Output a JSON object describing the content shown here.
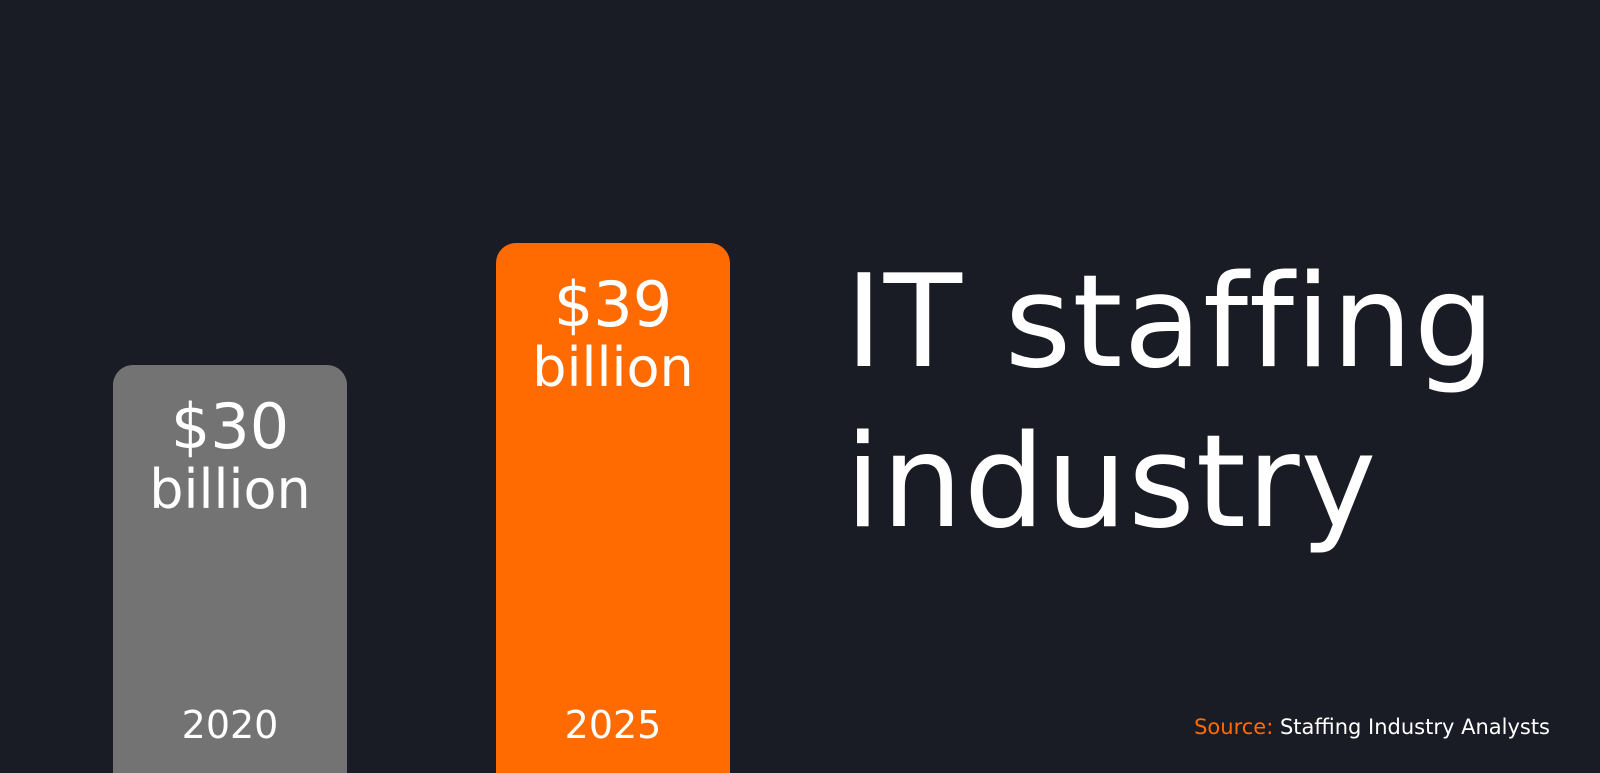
{
  "chart_data": {
    "type": "bar",
    "title": "IT staffing industry",
    "title_lines": [
      "IT staffing",
      "industry"
    ],
    "categories": [
      "2020",
      "2025"
    ],
    "values": [
      30,
      39
    ],
    "unit": "billion",
    "value_labels": [
      {
        "amount": "$30",
        "unit": "billion"
      },
      {
        "amount": "$39",
        "unit": "billion"
      }
    ],
    "colors": [
      "#737373",
      "#ff6b00"
    ],
    "ylim": [
      0,
      48
    ],
    "grid": false,
    "axes_visible": false
  },
  "source": {
    "label": "Source:",
    "text": "Staffing Industry Analysts"
  },
  "colors": {
    "background": "#191c24",
    "accent": "#ff6b00",
    "text": "#ffffff"
  }
}
